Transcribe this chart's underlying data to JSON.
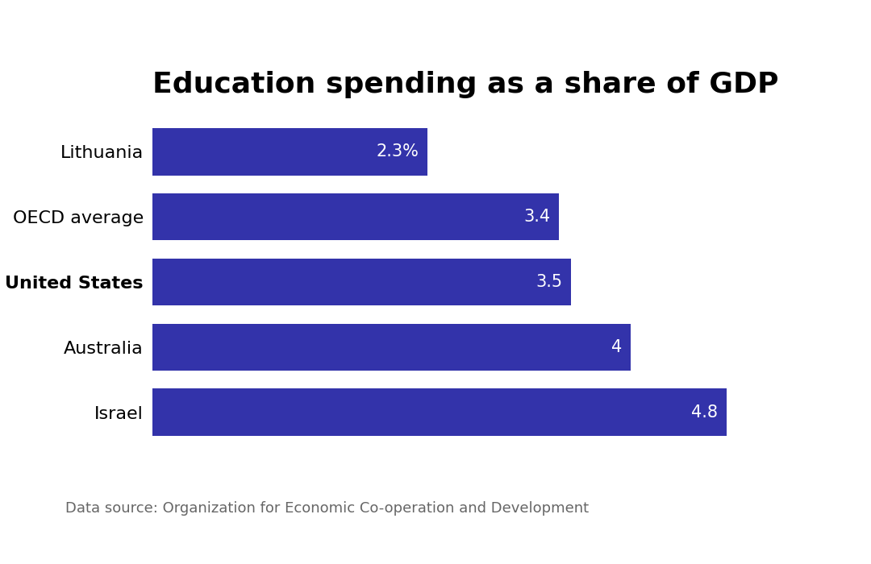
{
  "title": "Education spending as a share of GDP",
  "categories": [
    "Lithuania",
    "OECD average",
    "United States",
    "Australia",
    "Israel"
  ],
  "values": [
    2.3,
    3.4,
    3.5,
    4.0,
    4.8
  ],
  "labels": [
    "2.3%",
    "3.4",
    "3.5",
    "4",
    "4.8"
  ],
  "bar_color": "#3333aa",
  "label_color": "#ffffff",
  "bold_index": 2,
  "xlim": [
    0,
    5.5
  ],
  "source_text": "Data source: Organization for Economic Co-operation and Development",
  "background_color": "#ffffff",
  "title_fontsize": 26,
  "label_fontsize": 15,
  "ytick_fontsize": 16,
  "source_fontsize": 13,
  "bar_height": 0.72
}
